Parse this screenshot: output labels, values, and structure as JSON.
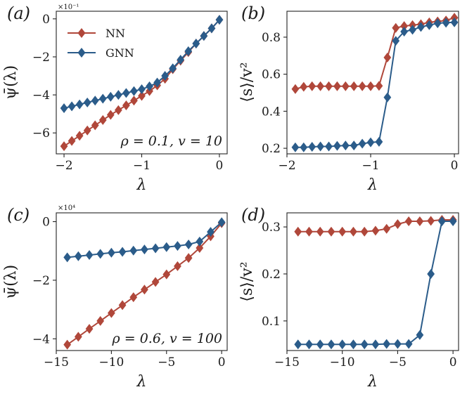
{
  "colors": {
    "nn": "#b0473a",
    "gnn": "#2b5c8a"
  },
  "legend": {
    "nn": "NN",
    "gnn": "GNN"
  },
  "chart_data": [
    {
      "type": "line",
      "panel": "(a)",
      "xlabel": "λ",
      "ylabel": "ψ̄(λ)",
      "y_multiplier": "×10⁻¹",
      "annotation": "ρ = 0.1, v = 10",
      "xlim": [
        -2.1,
        0.1
      ],
      "ylim": [
        -7.1,
        0.4
      ],
      "xticks": [
        -2,
        -1,
        0
      ],
      "xtick_labels": [
        "−2",
        "−1",
        "0"
      ],
      "yticks": [
        -6,
        -4,
        -2,
        0
      ],
      "ytick_labels": [
        "−6",
        "−4",
        "−2",
        "0"
      ],
      "legend": true,
      "x": [
        -2.0,
        -1.9,
        -1.8,
        -1.7,
        -1.6,
        -1.5,
        -1.4,
        -1.3,
        -1.2,
        -1.1,
        -1.0,
        -0.9,
        -0.8,
        -0.7,
        -0.6,
        -0.5,
        -0.4,
        -0.3,
        -0.2,
        -0.1,
        0.0
      ],
      "series": [
        {
          "name": "NN",
          "color_key": "nn",
          "values": [
            -6.7,
            -6.42,
            -6.15,
            -5.87,
            -5.6,
            -5.32,
            -5.05,
            -4.8,
            -4.55,
            -4.3,
            -4.05,
            -3.8,
            -3.5,
            -3.15,
            -2.65,
            -2.2,
            -1.75,
            -1.3,
            -0.9,
            -0.5,
            -0.05
          ]
        },
        {
          "name": "GNN",
          "color_key": "gnn",
          "values": [
            -4.7,
            -4.6,
            -4.5,
            -4.4,
            -4.3,
            -4.2,
            -4.1,
            -4.0,
            -3.9,
            -3.8,
            -3.7,
            -3.55,
            -3.35,
            -3.0,
            -2.6,
            -2.15,
            -1.7,
            -1.3,
            -0.9,
            -0.5,
            -0.05
          ]
        }
      ]
    },
    {
      "type": "line",
      "panel": "(b)",
      "xlabel": "λ",
      "ylabel": "⟨s⟩/v²",
      "xlim": [
        -2.0,
        0.05
      ],
      "ylim": [
        0.17,
        0.94
      ],
      "xticks": [
        -2,
        -1,
        0
      ],
      "xtick_labels": [
        "−2",
        "−1",
        "0"
      ],
      "yticks": [
        0.2,
        0.4,
        0.6,
        0.8
      ],
      "ytick_labels": [
        "0.2",
        "0.4",
        "0.6",
        "0.8"
      ],
      "x": [
        -1.9,
        -1.8,
        -1.7,
        -1.6,
        -1.5,
        -1.4,
        -1.3,
        -1.2,
        -1.1,
        -1.0,
        -0.9,
        -0.8,
        -0.7,
        -0.6,
        -0.5,
        -0.4,
        -0.3,
        -0.2,
        -0.1,
        0.0
      ],
      "series": [
        {
          "name": "NN",
          "color_key": "nn",
          "values": [
            0.52,
            0.532,
            0.535,
            0.535,
            0.535,
            0.535,
            0.535,
            0.535,
            0.535,
            0.535,
            0.537,
            0.69,
            0.85,
            0.86,
            0.865,
            0.87,
            0.88,
            0.885,
            0.89,
            0.905
          ]
        },
        {
          "name": "GNN",
          "color_key": "gnn",
          "values": [
            0.205,
            0.205,
            0.208,
            0.21,
            0.21,
            0.213,
            0.215,
            0.215,
            0.225,
            0.232,
            0.235,
            0.475,
            0.78,
            0.83,
            0.84,
            0.855,
            0.865,
            0.875,
            0.878,
            0.88
          ]
        }
      ]
    },
    {
      "type": "line",
      "panel": "(c)",
      "xlabel": "λ",
      "ylabel": "ψ̄(λ)",
      "y_multiplier": "×10⁴",
      "annotation": "ρ = 0.6, v = 100",
      "xlim": [
        -15.0,
        0.5
      ],
      "ylim": [
        -4.4,
        0.3
      ],
      "xticks": [
        -15,
        -10,
        -5,
        0
      ],
      "xtick_labels": [
        "−15",
        "−10",
        "−5",
        "0"
      ],
      "yticks": [
        -4,
        -2,
        0
      ],
      "ytick_labels": [
        "−4",
        "−2",
        "0"
      ],
      "x": [
        -14,
        -13,
        -12,
        -11,
        -10,
        -9,
        -8,
        -7,
        -6,
        -5,
        -4,
        -3,
        -2,
        -1,
        0
      ],
      "series": [
        {
          "name": "NN",
          "color_key": "nn",
          "values": [
            -4.2,
            -3.93,
            -3.66,
            -3.39,
            -3.12,
            -2.85,
            -2.58,
            -2.32,
            -2.06,
            -1.8,
            -1.52,
            -1.24,
            -0.9,
            -0.5,
            -0.05
          ]
        },
        {
          "name": "GNN",
          "color_key": "gnn",
          "values": [
            -1.22,
            -1.18,
            -1.14,
            -1.1,
            -1.06,
            -1.03,
            -0.99,
            -0.95,
            -0.91,
            -0.87,
            -0.83,
            -0.78,
            -0.68,
            -0.35,
            -0.02
          ]
        }
      ]
    },
    {
      "type": "line",
      "panel": "(d)",
      "xlabel": "λ",
      "ylabel": "⟨s⟩/v²",
      "xlim": [
        -15.0,
        0.5
      ],
      "ylim": [
        0.037,
        0.33
      ],
      "xticks": [
        -15,
        -10,
        -5,
        0
      ],
      "xtick_labels": [
        "−15",
        "−10",
        "−5",
        "0"
      ],
      "yticks": [
        0.1,
        0.2,
        0.3
      ],
      "ytick_labels": [
        "0.1",
        "0.2",
        "0.3"
      ],
      "x": [
        -14,
        -13,
        -12,
        -11,
        -10,
        -9,
        -8,
        -7,
        -6,
        -5,
        -4,
        -3,
        -2,
        -1,
        0
      ],
      "series": [
        {
          "name": "NN",
          "color_key": "nn",
          "values": [
            0.29,
            0.29,
            0.29,
            0.29,
            0.29,
            0.29,
            0.29,
            0.292,
            0.296,
            0.306,
            0.312,
            0.312,
            0.313,
            0.315,
            0.315
          ]
        },
        {
          "name": "GNN",
          "color_key": "gnn",
          "values": [
            0.05,
            0.05,
            0.05,
            0.05,
            0.05,
            0.05,
            0.05,
            0.05,
            0.051,
            0.051,
            0.051,
            0.07,
            0.2,
            0.312,
            0.312
          ]
        }
      ]
    }
  ]
}
